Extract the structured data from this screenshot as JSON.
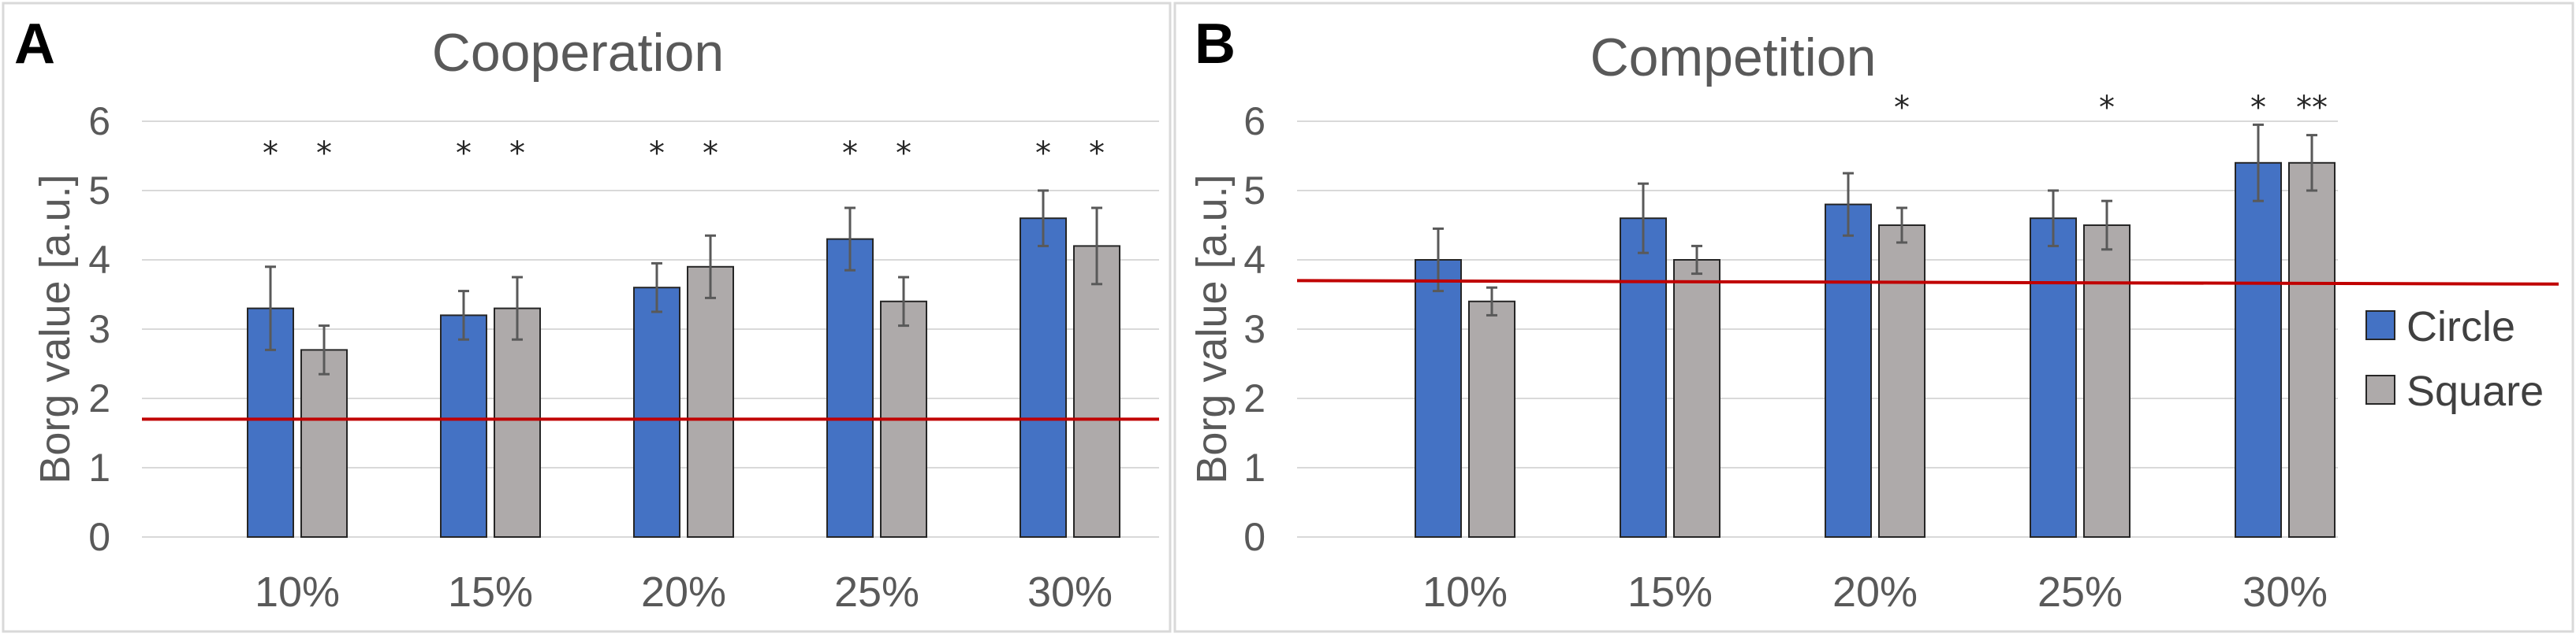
{
  "colors": {
    "circle": "#4472C4",
    "square": "#AEAAAA",
    "reference_line": "#C00000"
  },
  "legend": [
    {
      "name": "Circle",
      "color_key": "circle"
    },
    {
      "name": "Square",
      "color_key": "square"
    }
  ],
  "chart_data": [
    {
      "type": "bar",
      "panel": "A",
      "title": "Cooperation",
      "xlabel": "",
      "ylabel": "Borg value [a.u.]",
      "ylim": [
        0,
        6
      ],
      "yticks": [
        "0",
        "1",
        "2",
        "3",
        "4",
        "5",
        "6"
      ],
      "grid": true,
      "categories": [
        "10%",
        "15%",
        "20%",
        "25%",
        "30%"
      ],
      "series": [
        {
          "name": "Circle",
          "values": [
            3.3,
            3.2,
            3.6,
            4.3,
            4.6
          ],
          "errors": [
            0.6,
            0.35,
            0.35,
            0.45,
            0.4
          ],
          "significance": [
            "*",
            "*",
            "*",
            "*",
            "*"
          ]
        },
        {
          "name": "Square",
          "values": [
            2.7,
            3.3,
            3.9,
            3.4,
            4.2
          ],
          "errors": [
            0.35,
            0.45,
            0.45,
            0.35,
            0.55
          ],
          "significance": [
            "*",
            "*",
            "*",
            "*",
            "*"
          ]
        }
      ],
      "reference_line": {
        "start": 1.7,
        "end": 1.7
      }
    },
    {
      "type": "bar",
      "panel": "B",
      "title": "Competition",
      "xlabel": "",
      "ylabel": "Borg value [a.u.]",
      "ylim": [
        0,
        6
      ],
      "yticks": [
        "0",
        "1",
        "2",
        "3",
        "4",
        "5",
        "6"
      ],
      "grid": true,
      "categories": [
        "10%",
        "15%",
        "20%",
        "25%",
        "30%"
      ],
      "series": [
        {
          "name": "Circle",
          "values": [
            4.0,
            4.6,
            4.8,
            4.6,
            5.4
          ],
          "errors": [
            0.45,
            0.5,
            0.45,
            0.4,
            0.55
          ],
          "significance": [
            "",
            "",
            "",
            "",
            "*"
          ]
        },
        {
          "name": "Square",
          "values": [
            3.4,
            4.0,
            4.5,
            4.5,
            5.4
          ],
          "errors": [
            0.2,
            0.2,
            0.25,
            0.35,
            0.4
          ],
          "significance": [
            "",
            "",
            "*",
            "*",
            "**"
          ]
        }
      ],
      "reference_line": {
        "start": 3.7,
        "end": 3.65
      }
    }
  ]
}
